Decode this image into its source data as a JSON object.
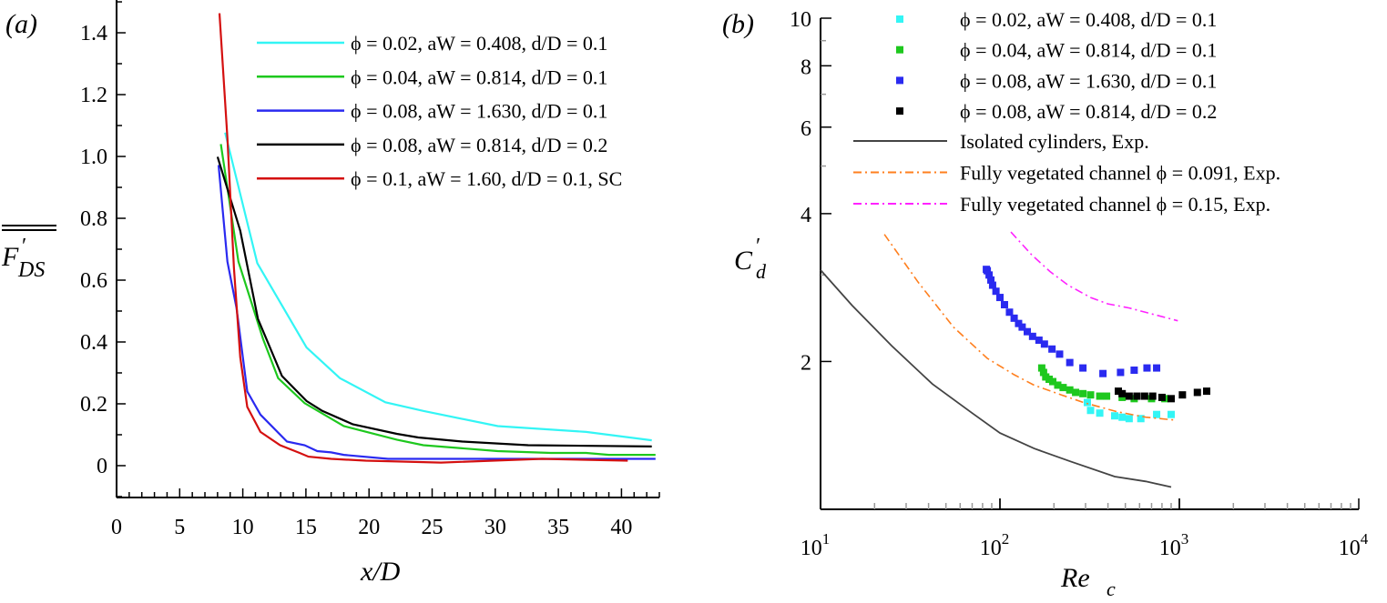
{
  "chart_data": [
    {
      "type": "line",
      "panel_label": "(a)",
      "xlabel": "x/D",
      "ylabel": "F'_DS",
      "ylabel_main": "F",
      "ylabel_prime": "′",
      "ylabel_sub": "DS",
      "xlim": [
        0,
        43
      ],
      "ylim": [
        -0.103,
        1.506
      ],
      "xticks": [
        0,
        5,
        10,
        15,
        20,
        25,
        30,
        35,
        40
      ],
      "xtick_labels": [
        "0",
        "5",
        "10",
        "15",
        "20",
        "25",
        "30",
        "35",
        "40"
      ],
      "yticks": [
        0,
        0.2,
        0.4,
        0.6,
        0.8,
        1.0,
        1.2,
        1.4
      ],
      "ytick_labels": [
        "0",
        "0.2",
        "0.4",
        "0.6",
        "0.8",
        "1.0",
        "1.2",
        "1.4"
      ],
      "legend_position": "top-right",
      "series": [
        {
          "name": "ϕ = 0.02, aW = 0.408, d/D = 0.1",
          "color": "#33f5f5",
          "x": [
            8.6,
            11.15,
            15.05,
            17.7,
            21.3,
            24.3,
            30.2,
            37.2,
            42.4
          ],
          "y": [
            1.077,
            0.655,
            0.382,
            0.283,
            0.205,
            0.177,
            0.128,
            0.109,
            0.082
          ]
        },
        {
          "name": "ϕ = 0.04, aW = 0.814, d/D = 0.1",
          "color": "#1ec81e",
          "x": [
            8.26,
            9.65,
            11.6,
            12.8,
            14.9,
            18,
            22.2,
            24.3,
            30.2,
            34.4,
            37.2,
            39,
            42.7
          ],
          "y": [
            1.04,
            0.66,
            0.41,
            0.283,
            0.202,
            0.128,
            0.084,
            0.066,
            0.047,
            0.041,
            0.041,
            0.035,
            0.035
          ]
        },
        {
          "name": "ϕ = 0.08, aW = 1.630, d/D = 0.1",
          "color": "#2a2af0",
          "x": [
            8.08,
            8.78,
            9.5,
            10.35,
            11.4,
            13.5,
            14.9,
            15.9,
            17,
            18,
            21.5,
            29.2,
            42.7
          ],
          "y": [
            0.972,
            0.66,
            0.51,
            0.24,
            0.165,
            0.078,
            0.066,
            0.047,
            0.043,
            0.035,
            0.022,
            0.022,
            0.022
          ]
        },
        {
          "name": "ϕ = 0.08, aW = 0.814, d/D = 0.2",
          "color": "#000000",
          "x": [
            8.0,
            9.8,
            11.2,
            13.1,
            15.05,
            16.3,
            18.7,
            22.2,
            23.9,
            27.4,
            32.6,
            42.4
          ],
          "y": [
            0.999,
            0.76,
            0.475,
            0.29,
            0.209,
            0.177,
            0.134,
            0.103,
            0.091,
            0.078,
            0.066,
            0.062
          ]
        },
        {
          "name": "ϕ = 0.1, aW = 1.60, d/D = 0.1, SC",
          "color": "#d41010",
          "x": [
            8.15,
            8.78,
            9.3,
            9.8,
            10.35,
            11.4,
            12.96,
            14.5,
            15.2,
            17,
            19.75,
            25.7,
            33.7,
            40.5
          ],
          "y": [
            1.463,
            1.06,
            0.638,
            0.351,
            0.19,
            0.109,
            0.066,
            0.041,
            0.029,
            0.022,
            0.016,
            0.01,
            0.022,
            0.016
          ]
        }
      ]
    },
    {
      "type": "scatter",
      "panel_label": "(b)",
      "xlabel": "Re_c",
      "xlabel_main": "Re",
      "xlabel_sub": "c",
      "ylabel": "C'_d",
      "ylabel_main": "C",
      "ylabel_prime": "′",
      "ylabel_sub": "d",
      "xscale": "log",
      "yscale": "log",
      "xlim": [
        10,
        10000
      ],
      "ylim": [
        1,
        10
      ],
      "xticks": [
        10,
        100,
        1000,
        10000
      ],
      "xtick_labels": [
        [
          "10",
          "1"
        ],
        [
          "10",
          "2"
        ],
        [
          "10",
          "3"
        ],
        [
          "10",
          "4"
        ]
      ],
      "yticks": [
        2,
        4,
        6,
        8,
        10
      ],
      "ytick_labels": [
        "2",
        "4",
        "6",
        "8",
        "10"
      ],
      "legend_position": "top-right",
      "series": [
        {
          "name": "ϕ = 0.02, aW = 0.408, d/D = 0.1",
          "color": "#33f5f5",
          "style": "square",
          "x": [
            307,
            320,
            360,
            436,
            480,
            525,
            610,
            747,
            900
          ],
          "y": [
            1.65,
            1.59,
            1.57,
            1.55,
            1.54,
            1.53,
            1.53,
            1.56,
            1.56
          ]
        },
        {
          "name": "ϕ = 0.04, aW = 0.814, d/D = 0.1",
          "color": "#1ec81e",
          "style": "square",
          "x": [
            171,
            175,
            180,
            188,
            197,
            210,
            225,
            245,
            264,
            290,
            320,
            360,
            393,
            480,
            560,
            700,
            830
          ],
          "y": [
            1.94,
            1.9,
            1.86,
            1.84,
            1.82,
            1.79,
            1.77,
            1.75,
            1.73,
            1.72,
            1.71,
            1.7,
            1.7,
            1.69,
            1.68,
            1.68,
            1.68
          ]
        },
        {
          "name": "ϕ = 0.08, aW = 1.630, d/D = 0.1",
          "color": "#2a2af0",
          "style": "square",
          "x": [
            84,
            85,
            87,
            89,
            91,
            95,
            100,
            106,
            113,
            120,
            127,
            133,
            142,
            152,
            165,
            177,
            195,
            215,
            245,
            290,
            375,
            470,
            560,
            660,
            747
          ],
          "y": [
            3.08,
            3.06,
            3.0,
            2.93,
            2.86,
            2.78,
            2.7,
            2.61,
            2.52,
            2.45,
            2.39,
            2.35,
            2.3,
            2.25,
            2.21,
            2.17,
            2.12,
            2.07,
            1.99,
            1.94,
            1.89,
            1.9,
            1.92,
            1.94,
            1.94
          ]
        },
        {
          "name": "ϕ = 0.08, aW = 0.814, d/D = 0.2",
          "color": "#000000",
          "style": "square",
          "x": [
            457,
            480,
            525,
            580,
            640,
            710,
            800,
            900,
            1040,
            1260,
            1420
          ],
          "y": [
            1.74,
            1.72,
            1.7,
            1.7,
            1.7,
            1.7,
            1.69,
            1.68,
            1.71,
            1.73,
            1.74
          ]
        },
        {
          "name": "Isolated cylinders, Exp.",
          "color": "#444444",
          "style": "solid",
          "x": [
            10,
            15,
            25,
            42,
            70,
            100,
            155,
            250,
            436,
            650,
            900
          ],
          "y": [
            3.07,
            2.6,
            2.15,
            1.8,
            1.57,
            1.43,
            1.33,
            1.25,
            1.166,
            1.14,
            1.11
          ]
        },
        {
          "name": "Fully vegetated channel ϕ = 0.091, Exp.",
          "color": "#ff7f1e",
          "style": "dashdot",
          "x": [
            22.7,
            35,
            55,
            85,
            120,
            155,
            220,
            293,
            450,
            650,
            933
          ],
          "y": [
            3.63,
            2.9,
            2.35,
            2.03,
            1.88,
            1.79,
            1.71,
            1.65,
            1.58,
            1.54,
            1.52
          ]
        },
        {
          "name": "Fully vegetated channel ϕ = 0.15, Exp.",
          "color": "#ff22ff",
          "style": "dashdot",
          "x": [
            115,
            150,
            190,
            240,
            320,
            400,
            525,
            700,
            980
          ],
          "y": [
            3.67,
            3.3,
            3.05,
            2.86,
            2.7,
            2.62,
            2.57,
            2.5,
            2.42
          ]
        }
      ]
    }
  ]
}
